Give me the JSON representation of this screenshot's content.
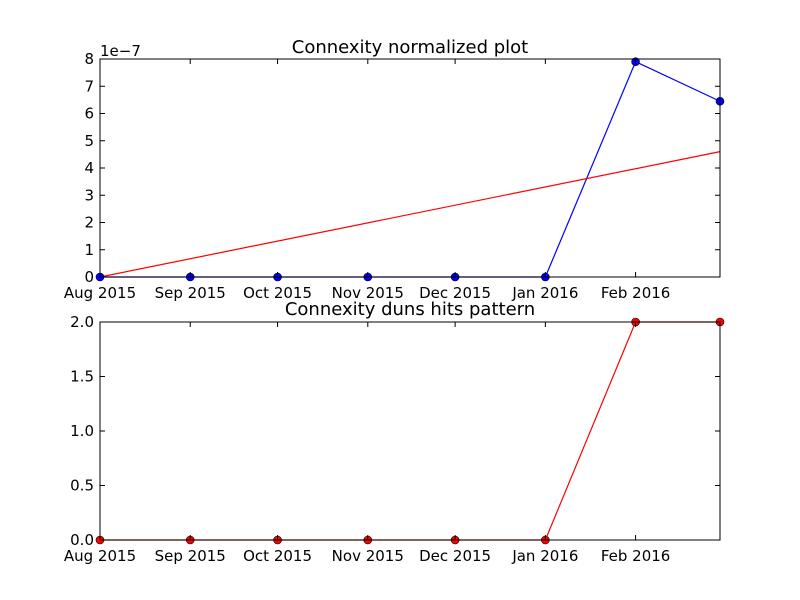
{
  "chart_data": [
    {
      "type": "line",
      "title": "Connexity normalized plot",
      "xlabel": "",
      "ylabel": "",
      "offset_label": "1e−7",
      "x": [
        "2015-08-01",
        "2015-09-01",
        "2015-10-01",
        "2015-11-01",
        "2015-12-01",
        "2016-01-01",
        "2016-02-01",
        "2016-03-01"
      ],
      "xlim": [
        "2015-08-01",
        "2016-03-01"
      ],
      "xtick_labels": [
        "Aug 2015",
        "Sep 2015",
        "Oct 2015",
        "Nov 2015",
        "Dec 2015",
        "Jan 2016",
        "Feb 2016"
      ],
      "ylim": [
        0,
        8e-07
      ],
      "ytick_labels": [
        "0",
        "1",
        "2",
        "3",
        "4",
        "5",
        "6",
        "7",
        "8"
      ],
      "series": [
        {
          "color": "#0000ff",
          "marker": "circle",
          "values": [
            0,
            0,
            0,
            0,
            0,
            0,
            7.9e-07,
            6.45e-07
          ]
        },
        {
          "color": "#ff0000",
          "marker": "none",
          "x": [
            "2015-08-01",
            "2016-03-01"
          ],
          "values": [
            0,
            4.6e-07
          ]
        }
      ],
      "grid": false
    },
    {
      "type": "line",
      "title": "Connexity duns hits pattern",
      "xlabel": "",
      "ylabel": "",
      "x": [
        "2015-08-01",
        "2015-09-01",
        "2015-10-01",
        "2015-11-01",
        "2015-12-01",
        "2016-01-01",
        "2016-02-01",
        "2016-03-01"
      ],
      "xlim": [
        "2015-08-01",
        "2016-03-01"
      ],
      "xtick_labels": [
        "Aug 2015",
        "Sep 2015",
        "Oct 2015",
        "Nov 2015",
        "Dec 2015",
        "Jan 2016",
        "Feb 2016"
      ],
      "ylim": [
        0,
        2
      ],
      "ytick_labels": [
        "0.0",
        "0.5",
        "1.0",
        "1.5",
        "2.0"
      ],
      "series": [
        {
          "color": "#ff0000",
          "marker": "circle",
          "values": [
            0,
            0,
            0,
            0,
            0,
            0,
            2,
            2
          ]
        }
      ],
      "grid": false
    }
  ]
}
